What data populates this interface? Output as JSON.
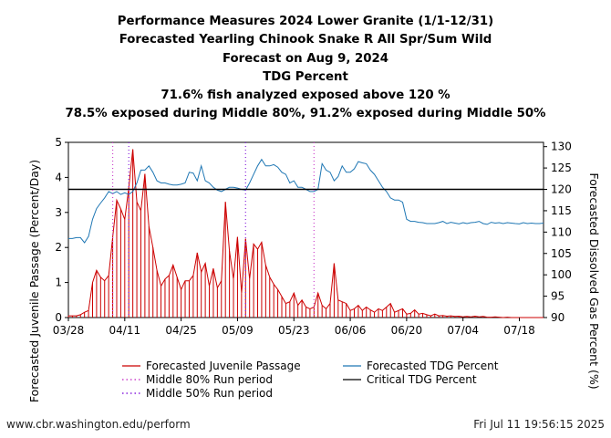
{
  "chart_data": {
    "type": "line",
    "title_lines": [
      "Performance Measures 2024 Lower Granite (1/1-12/31)",
      "Forecasted Yearling Chinook Snake R All Spr/Sum Wild",
      "Forecast on Aug 9, 2024",
      "TDG Percent",
      "71.6% fish analyzed exposed above 120 %",
      "78.5% exposed during Middle 80%, 91.2% exposed during Middle 50%"
    ],
    "xlabel": "",
    "ylabel_left": "Forecasted Juvenile Passage (Percent/Day)",
    "ylabel_right": "Forecasted Dissolved Gas Percent (%)",
    "x_start": "03/28",
    "x_end": "07/24",
    "x_ticks": [
      "03/28",
      "04/11",
      "04/25",
      "05/09",
      "05/23",
      "06/06",
      "06/20",
      "07/04",
      "07/18"
    ],
    "ylim_left": [
      0,
      5
    ],
    "yticks_left": [
      "0",
      "1",
      "2",
      "3",
      "4",
      "5"
    ],
    "ylim_right": [
      90,
      131
    ],
    "yticks_right": [
      "90",
      "95",
      "100",
      "105",
      "110",
      "115",
      "120",
      "125",
      "130"
    ],
    "series": [
      {
        "name": "Forecasted Juvenile Passage",
        "color": "#cc0000",
        "style": "line-with-drop-bars",
        "days": [
          "03/28",
          "03/29",
          "03/30",
          "03/31",
          "04/01",
          "04/02",
          "04/03",
          "04/04",
          "04/05",
          "04/06",
          "04/07",
          "04/08",
          "04/09",
          "04/10",
          "04/11",
          "04/12",
          "04/13",
          "04/14",
          "04/15",
          "04/16",
          "04/17",
          "04/18",
          "04/19",
          "04/20",
          "04/21",
          "04/22",
          "04/23",
          "04/24",
          "04/25",
          "04/26",
          "04/27",
          "04/28",
          "04/29",
          "04/30",
          "05/01",
          "05/02",
          "05/03",
          "05/04",
          "05/05",
          "05/06",
          "05/07",
          "05/08",
          "05/09",
          "05/10",
          "05/11",
          "05/12",
          "05/13",
          "05/14",
          "05/15",
          "05/16",
          "05/17",
          "05/18",
          "05/19",
          "05/20",
          "05/21",
          "05/22",
          "05/23",
          "05/24",
          "05/25",
          "05/26",
          "05/27",
          "05/28",
          "05/29",
          "05/30",
          "05/31",
          "06/01",
          "06/02",
          "06/03",
          "06/04",
          "06/05",
          "06/06",
          "06/07",
          "06/08",
          "06/09",
          "06/10",
          "06/11",
          "06/12",
          "06/13",
          "06/14",
          "06/15",
          "06/16",
          "06/17",
          "06/18",
          "06/19",
          "06/20",
          "06/21",
          "06/22",
          "06/23",
          "06/24",
          "06/25",
          "06/26",
          "06/27",
          "06/28",
          "06/29",
          "06/30",
          "07/01",
          "07/02",
          "07/03",
          "07/04",
          "07/05",
          "07/06",
          "07/07",
          "07/08",
          "07/09",
          "07/10",
          "07/11",
          "07/12",
          "07/13",
          "07/14",
          "07/15",
          "07/16",
          "07/17",
          "07/18",
          "07/19",
          "07/20",
          "07/21",
          "07/22",
          "07/23",
          "07/24"
        ],
        "values": [
          0.05,
          0.05,
          0.05,
          0.08,
          0.15,
          0.2,
          1.0,
          1.35,
          1.15,
          1.05,
          1.2,
          2.3,
          3.35,
          3.1,
          2.8,
          3.7,
          4.8,
          3.3,
          3.05,
          4.1,
          2.6,
          2.0,
          1.35,
          0.9,
          1.1,
          1.2,
          1.5,
          1.15,
          0.8,
          1.05,
          1.05,
          1.2,
          1.85,
          1.3,
          1.55,
          0.9,
          1.4,
          0.85,
          1.05,
          3.3,
          1.9,
          1.1,
          2.3,
          0.7,
          2.25,
          1.1,
          2.1,
          1.95,
          2.15,
          1.5,
          1.15,
          0.95,
          0.8,
          0.6,
          0.4,
          0.45,
          0.7,
          0.35,
          0.5,
          0.3,
          0.25,
          0.3,
          0.7,
          0.35,
          0.25,
          0.4,
          1.55,
          0.5,
          0.45,
          0.4,
          0.2,
          0.25,
          0.35,
          0.2,
          0.3,
          0.22,
          0.15,
          0.25,
          0.2,
          0.3,
          0.4,
          0.15,
          0.2,
          0.25,
          0.1,
          0.12,
          0.22,
          0.1,
          0.12,
          0.08,
          0.05,
          0.1,
          0.05,
          0.06,
          0.04,
          0.05,
          0.03,
          0.04,
          0.02,
          0.03,
          0.02,
          0.04,
          0.02,
          0.03,
          0.01,
          0.01,
          0.02,
          0.01,
          0.0,
          0.01,
          0.0,
          0.0,
          0.0,
          0.0,
          0.0,
          0.0,
          0.0,
          0.0,
          0.0
        ]
      },
      {
        "name": "Forecasted TDG Percent",
        "color": "#1f77b4",
        "style": "line",
        "axis": "right",
        "values": [
          108.5,
          108.5,
          108.7,
          108.7,
          107.5,
          109.0,
          113.0,
          115.5,
          116.8,
          118.0,
          119.5,
          119.0,
          119.5,
          118.8,
          119.2,
          118.8,
          119.5,
          121.5,
          124.5,
          124.5,
          125.5,
          124.0,
          122.0,
          121.5,
          121.5,
          121.2,
          121.0,
          121.0,
          121.2,
          121.5,
          124.0,
          123.8,
          122.0,
          125.5,
          122.0,
          121.5,
          120.5,
          119.8,
          119.5,
          120.0,
          120.5,
          120.5,
          120.3,
          120.0,
          119.8,
          121.5,
          123.5,
          125.5,
          127.0,
          125.5,
          125.5,
          125.8,
          125.2,
          124.0,
          123.5,
          121.5,
          122.0,
          120.5,
          120.5,
          120.0,
          119.5,
          119.5,
          120.0,
          126.0,
          124.5,
          124.0,
          122.0,
          123.0,
          125.5,
          124.0,
          124.0,
          124.8,
          126.5,
          126.2,
          126.0,
          124.5,
          123.5,
          122.0,
          120.5,
          119.5,
          118.0,
          117.5,
          117.5,
          117.0,
          113.0,
          112.5,
          112.5,
          112.3,
          112.2,
          112.0,
          112.0,
          112.0,
          112.2,
          112.5,
          112.0,
          112.3,
          112.1,
          111.9,
          112.2,
          112.0,
          112.2,
          112.3,
          112.5,
          112.0,
          111.8,
          112.3,
          112.1,
          112.2,
          112.0,
          112.2,
          112.1,
          112.0,
          111.9,
          112.2,
          112.0,
          112.1,
          112.0,
          112.0,
          112.1
        ]
      },
      {
        "name": "Critical TDG Percent",
        "color": "#000000",
        "style": "horizontal-line",
        "axis": "right",
        "value": 120
      }
    ],
    "reference_lines": [
      {
        "name": "Middle 80% Run period",
        "color": "#cc44cc",
        "style": "dotted",
        "dates": [
          "04/08",
          "05/28"
        ]
      },
      {
        "name": "Middle 50% Run period",
        "color": "#8822dd",
        "style": "dotted",
        "dates": [
          "04/12",
          "05/11"
        ]
      }
    ],
    "legend": {
      "placement": "bottom",
      "items": [
        {
          "label": "Forecasted Juvenile Passage",
          "color": "#cc0000",
          "kind": "solid"
        },
        {
          "label": "Forecasted TDG Percent",
          "color": "#1f77b4",
          "kind": "solid"
        },
        {
          "label": "Middle 80% Run period",
          "color": "#cc44cc",
          "kind": "dotted"
        },
        {
          "label": "Critical TDG Percent",
          "color": "#000000",
          "kind": "solid"
        },
        {
          "label": "Middle 50% Run period",
          "color": "#8822dd",
          "kind": "dotted"
        }
      ]
    },
    "grid": false
  },
  "footer": {
    "left": "www.cbr.washington.edu/perform",
    "right": "Fri Jul 11 19:56:15 2025"
  }
}
